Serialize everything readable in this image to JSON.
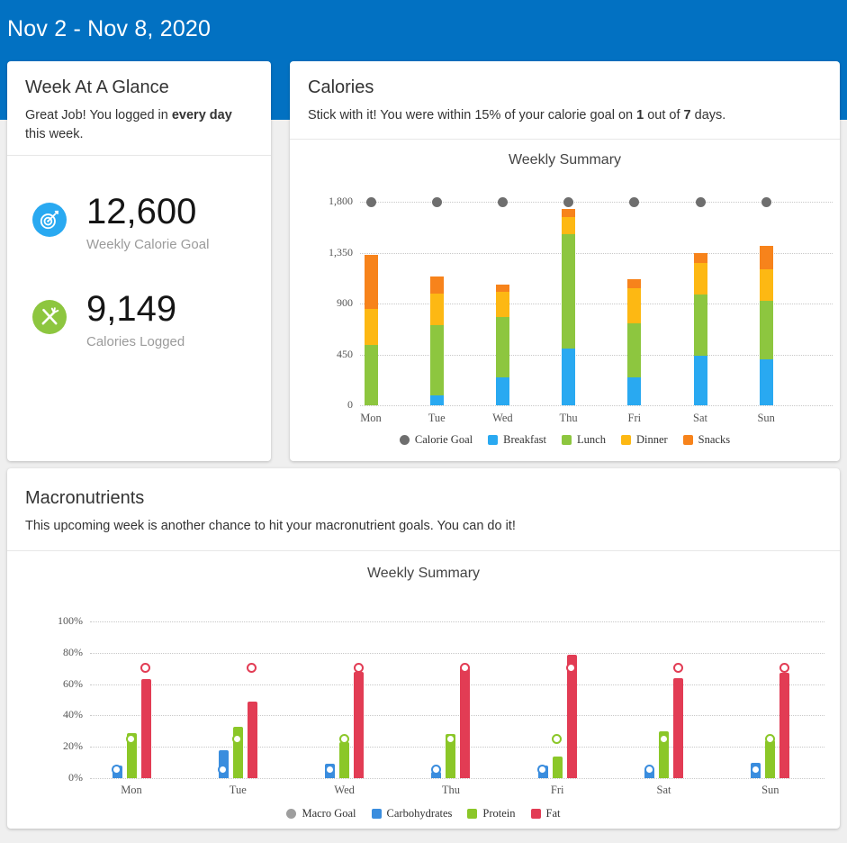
{
  "header": {
    "title": "Nov 2 - Nov 8, 2020"
  },
  "week_at_a_glance": {
    "title": "Week At A Glance",
    "subtitle_parts": [
      {
        "text": "Great Job! You logged in "
      },
      {
        "text": "every day",
        "bold": true
      },
      {
        "text": " this week."
      }
    ],
    "stats": [
      {
        "icon": "target-icon",
        "value": "12,600",
        "label": "Weekly Calorie Goal",
        "color": "#29a9f1"
      },
      {
        "icon": "crossed-utensils-icon",
        "value": "9,149",
        "label": "Calories Logged",
        "color": "#8dc63f"
      }
    ]
  },
  "calories_section": {
    "title": "Calories",
    "subtitle_parts": [
      {
        "text": "Stick with it! You were within 15% of your calorie goal on "
      },
      {
        "text": "1",
        "bold": true
      },
      {
        "text": " out of "
      },
      {
        "text": "7",
        "bold": true
      },
      {
        "text": " days."
      }
    ]
  },
  "macronutrients_section": {
    "title": "Macronutrients",
    "subtitle_parts": [
      {
        "text": "This upcoming week is another chance to hit your macronutrient goals. You can do it!"
      }
    ]
  },
  "chart_data": [
    {
      "type": "bar",
      "variant": "stacked",
      "title": "Weekly Summary",
      "categories": [
        "Mon",
        "Tue",
        "Wed",
        "Thu",
        "Fri",
        "Sat",
        "Sun"
      ],
      "series": [
        {
          "name": "Breakfast",
          "color": "#29a9f1",
          "values": [
            0,
            90,
            250,
            500,
            250,
            435,
            405
          ]
        },
        {
          "name": "Lunch",
          "color": "#8dc63f",
          "values": [
            530,
            615,
            530,
            1015,
            475,
            545,
            520
          ]
        },
        {
          "name": "Dinner",
          "color": "#fdb813",
          "values": [
            325,
            280,
            220,
            150,
            310,
            275,
            275
          ]
        },
        {
          "name": "Snacks",
          "color": "#f7831b",
          "values": [
            475,
            155,
            70,
            75,
            80,
            90,
            209
          ]
        }
      ],
      "goal": {
        "name": "Calorie Goal",
        "color": "#6e6e6e",
        "values": [
          1800,
          1800,
          1800,
          1800,
          1800,
          1800,
          1800
        ]
      },
      "daily_totals": [
        1330,
        1140,
        1070,
        1740,
        1115,
        1345,
        1409
      ],
      "weekly_total_logged": "9,149",
      "y_ticks": [
        "0",
        "450",
        "900",
        "1,350",
        "1,800"
      ],
      "y_tick_values": [
        0,
        450,
        900,
        1350,
        1800
      ],
      "ylim": [
        0,
        1800
      ],
      "grid": "dotted horizontal",
      "legend_position": "bottom"
    },
    {
      "type": "bar",
      "variant": "grouped",
      "title": "Weekly Summary",
      "categories": [
        "Mon",
        "Tue",
        "Wed",
        "Thu",
        "Fri",
        "Sat",
        "Sun"
      ],
      "series": [
        {
          "name": "Carbohydrates",
          "color": "#3a8dde",
          "values": [
            8,
            18,
            9,
            4,
            8,
            6,
            10
          ],
          "goal": 5
        },
        {
          "name": "Protein",
          "color": "#8bc728",
          "values": [
            29,
            33,
            23,
            28,
            14,
            30,
            24
          ],
          "goal": 25
        },
        {
          "name": "Fat",
          "color": "#e23c54",
          "values": [
            63,
            49,
            68,
            70,
            79,
            64,
            67
          ],
          "goal": 70
        }
      ],
      "goal_legend": {
        "name": "Macro Goal",
        "color": "#9e9e9e"
      },
      "y_ticks": [
        "0%",
        "20%",
        "40%",
        "60%",
        "80%",
        "100%"
      ],
      "y_tick_values": [
        0,
        20,
        40,
        60,
        80,
        100
      ],
      "ylim": [
        0,
        100
      ],
      "grid": "dotted horizontal",
      "legend_position": "bottom"
    }
  ]
}
